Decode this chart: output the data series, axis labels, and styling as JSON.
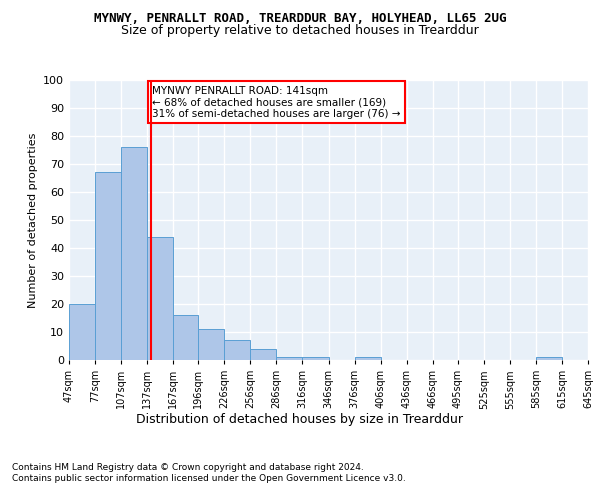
{
  "title": "MYNWY, PENRALLT ROAD, TREARDDUR BAY, HOLYHEAD, LL65 2UG",
  "subtitle": "Size of property relative to detached houses in Trearddur",
  "xlabel": "Distribution of detached houses by size in Trearddur",
  "ylabel": "Number of detached properties",
  "bar_color": "#aec6e8",
  "bar_edge_color": "#5a9fd4",
  "vline_x": 141,
  "vline_color": "red",
  "annotation_title": "MYNWY PENRALLT ROAD: 141sqm",
  "annotation_line1": "← 68% of detached houses are smaller (169)",
  "annotation_line2": "31% of semi-detached houses are larger (76) →",
  "bin_edges": [
    47,
    77,
    107,
    137,
    167,
    196,
    226,
    256,
    286,
    316,
    346,
    376,
    406,
    436,
    466,
    495,
    525,
    555,
    585,
    615,
    645
  ],
  "bar_heights": [
    20,
    67,
    76,
    44,
    16,
    11,
    7,
    4,
    1,
    1,
    0,
    1,
    0,
    0,
    0,
    0,
    0,
    0,
    1,
    0
  ],
  "tick_labels": [
    "47sqm",
    "77sqm",
    "107sqm",
    "137sqm",
    "167sqm",
    "196sqm",
    "226sqm",
    "256sqm",
    "286sqm",
    "316sqm",
    "346sqm",
    "376sqm",
    "406sqm",
    "436sqm",
    "466sqm",
    "495sqm",
    "525sqm",
    "555sqm",
    "585sqm",
    "615sqm",
    "645sqm"
  ],
  "ylim": [
    0,
    100
  ],
  "yticks": [
    0,
    10,
    20,
    30,
    40,
    50,
    60,
    70,
    80,
    90,
    100
  ],
  "footnote1": "Contains HM Land Registry data © Crown copyright and database right 2024.",
  "footnote2": "Contains public sector information licensed under the Open Government Licence v3.0.",
  "background_color": "#e8f0f8",
  "grid_color": "#ffffff",
  "fig_background": "#ffffff"
}
